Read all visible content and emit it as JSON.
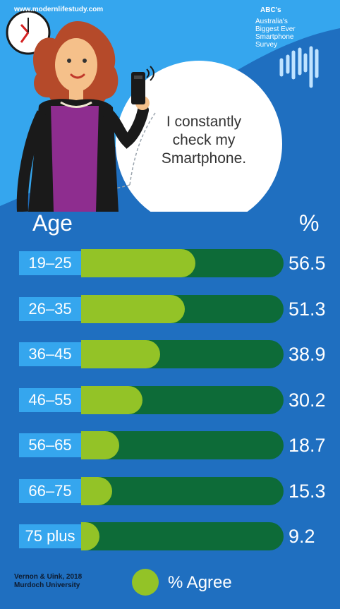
{
  "header": {
    "website": "www.modernlifestudy.com",
    "abc_title": "ABC's",
    "abc_subtitle_lines": [
      "Australia's",
      "Biggest Ever",
      "Smartphone",
      "Survey"
    ],
    "quote_lines": [
      "I constantly",
      "check my",
      "Smartphone."
    ]
  },
  "columns": {
    "age_label": "Age",
    "pct_label": "%"
  },
  "chart_data": {
    "type": "bar",
    "orientation": "horizontal",
    "xlabel": "Age",
    "ylabel": "%",
    "categories": [
      "19–25",
      "26–35",
      "36–45",
      "46–55",
      "56–65",
      "66–75",
      "75 plus"
    ],
    "series": [
      {
        "name": "% Agree",
        "values": [
          56.5,
          51.3,
          38.9,
          30.2,
          18.7,
          15.3,
          9.2
        ]
      }
    ],
    "value_labels": [
      "56.5",
      "51.3",
      "38.9",
      "30.2",
      "18.7",
      "15.3",
      "9.2"
    ],
    "xlim": [
      0,
      100
    ],
    "legend": "bottom",
    "colors": {
      "fill": "#93c327",
      "track": "#0d6b38",
      "age_box": "#35a6ee",
      "background": "#1f6fc0"
    }
  },
  "footer": {
    "source_lines": [
      "Vernon & Uink, 2018",
      "Murdoch University"
    ],
    "legend_label": "% Agree"
  },
  "icons": [
    "clock-icon",
    "abc-logo-icon",
    "woman-illustration",
    "smartphone-icon",
    "speech-bubble"
  ]
}
